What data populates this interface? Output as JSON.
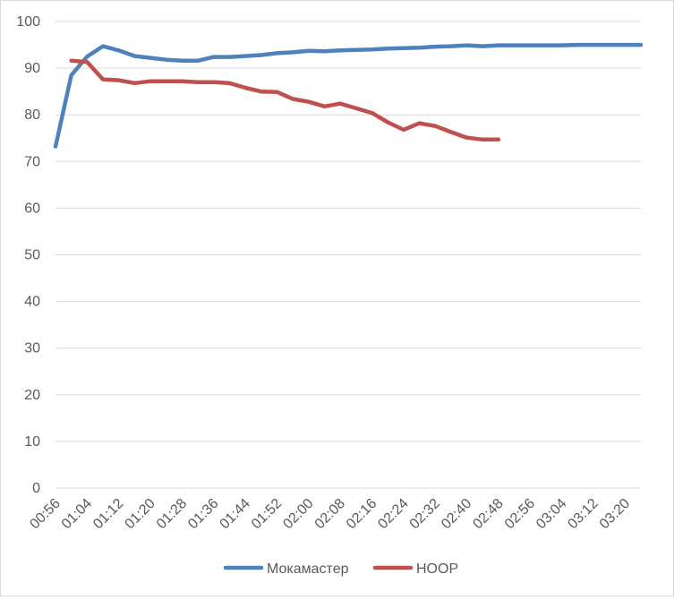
{
  "chart_data": {
    "type": "line",
    "title": "",
    "xlabel": "",
    "ylabel": "",
    "ylim": [
      0,
      100
    ],
    "yticks": [
      0,
      10,
      20,
      30,
      40,
      50,
      60,
      70,
      80,
      90,
      100
    ],
    "grid": true,
    "legend_position": "bottom",
    "x": [
      "00:56",
      "01:00",
      "01:04",
      "01:08",
      "01:12",
      "01:16",
      "01:20",
      "01:24",
      "01:28",
      "01:32",
      "01:36",
      "01:40",
      "01:44",
      "01:48",
      "01:52",
      "01:56",
      "02:00",
      "02:04",
      "02:08",
      "02:12",
      "02:16",
      "02:20",
      "02:24",
      "02:28",
      "02:32",
      "02:36",
      "02:40",
      "02:44",
      "02:48",
      "02:52",
      "02:56",
      "03:00",
      "03:04",
      "03:08",
      "03:12",
      "03:16",
      "03:20",
      "03:24"
    ],
    "xtick_labels": [
      "00:56",
      "01:04",
      "01:12",
      "01:20",
      "01:28",
      "01:36",
      "01:44",
      "01:52",
      "02:00",
      "02:08",
      "02:16",
      "02:24",
      "02:32",
      "02:40",
      "02:48",
      "02:56",
      "03:04",
      "03:12",
      "03:20"
    ],
    "series": [
      {
        "name": "Мокамастер",
        "color": "#4f81bd",
        "values": [
          73.2,
          88.5,
          92.5,
          94.7,
          93.8,
          92.6,
          92.2,
          91.8,
          91.6,
          91.6,
          92.4,
          92.4,
          92.6,
          92.8,
          93.2,
          93.4,
          93.7,
          93.6,
          93.8,
          93.9,
          94.0,
          94.2,
          94.3,
          94.4,
          94.6,
          94.7,
          94.9,
          94.7,
          94.9,
          94.9,
          94.9,
          94.9,
          94.9,
          95.0,
          95.0,
          95.0,
          95.0,
          95.0
        ]
      },
      {
        "name": "HOOP",
        "color": "#c0504d",
        "values": [
          null,
          91.6,
          91.3,
          87.6,
          87.4,
          86.8,
          87.2,
          87.2,
          87.2,
          87.0,
          87.0,
          86.8,
          85.8,
          85.0,
          84.9,
          83.4,
          82.8,
          81.8,
          82.4,
          81.4,
          80.4,
          78.4,
          76.8,
          78.2,
          77.6,
          76.3,
          75.1,
          74.7,
          74.7,
          null,
          null,
          null,
          null,
          null,
          null,
          null,
          null,
          null
        ]
      }
    ]
  }
}
